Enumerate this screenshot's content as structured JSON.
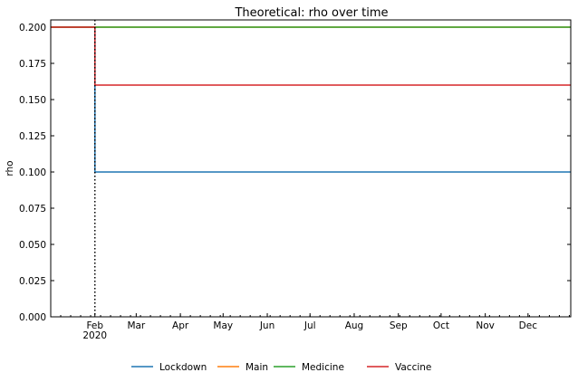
{
  "chart_data": {
    "type": "line",
    "title": "Theoretical: rho over time",
    "xlabel": "",
    "ylabel": "rho",
    "x_range": [
      "2020-01-01",
      "2020-12-31"
    ],
    "ylim": [
      0.0,
      0.205
    ],
    "y_ticks": [
      "0.000",
      "0.025",
      "0.050",
      "0.075",
      "0.100",
      "0.125",
      "0.150",
      "0.175",
      "0.200"
    ],
    "x_ticks": [
      {
        "date": "2020-02-01",
        "label": "Feb",
        "sublabel": "2020"
      },
      {
        "date": "2020-03-01",
        "label": "Mar"
      },
      {
        "date": "2020-04-01",
        "label": "Apr"
      },
      {
        "date": "2020-05-01",
        "label": "May"
      },
      {
        "date": "2020-06-01",
        "label": "Jun"
      },
      {
        "date": "2020-07-01",
        "label": "Jul"
      },
      {
        "date": "2020-08-01",
        "label": "Aug"
      },
      {
        "date": "2020-09-01",
        "label": "Sep"
      },
      {
        "date": "2020-10-01",
        "label": "Oct"
      },
      {
        "date": "2020-11-01",
        "label": "Nov"
      },
      {
        "date": "2020-12-01",
        "label": "Dec"
      }
    ],
    "vline": {
      "date": "2020-02-01",
      "style": "dotted",
      "color": "#000000"
    },
    "series": [
      {
        "name": "Lockdown",
        "color": "#1f77b4",
        "x": [
          "2020-01-01",
          "2020-02-01",
          "2020-02-01",
          "2020-12-31"
        ],
        "y": [
          0.2,
          0.2,
          0.1,
          0.1
        ]
      },
      {
        "name": "Main",
        "color": "#ff7f0e",
        "x": [
          "2020-01-01",
          "2020-12-31"
        ],
        "y": [
          0.2,
          0.2
        ]
      },
      {
        "name": "Medicine",
        "color": "#2ca02c",
        "x": [
          "2020-01-01",
          "2020-12-31"
        ],
        "y": [
          0.2,
          0.2
        ]
      },
      {
        "name": "Vaccine",
        "color": "#d62728",
        "x": [
          "2020-01-01",
          "2020-02-01",
          "2020-02-01",
          "2020-12-31"
        ],
        "y": [
          0.2,
          0.2,
          0.16,
          0.16
        ]
      }
    ],
    "legend": {
      "placement": "bottom-center",
      "entries": [
        "Lockdown",
        "Main",
        "Medicine",
        "Vaccine"
      ]
    },
    "grid": false
  }
}
